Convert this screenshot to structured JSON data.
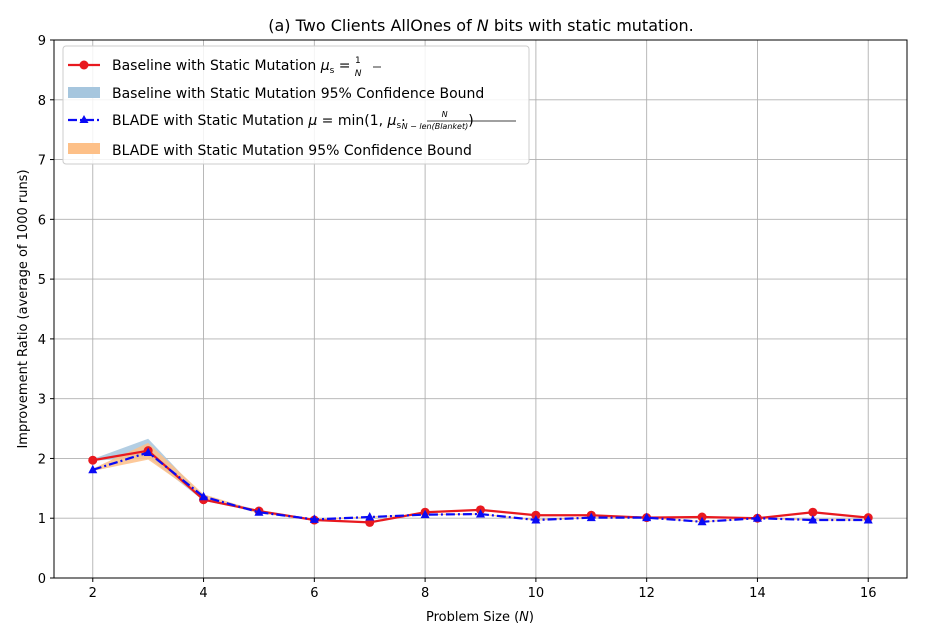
{
  "chart_data": {
    "type": "line",
    "title": "(a) Two Clients AllOnes of N bits with static mutation.",
    "xlabel": "Problem Size (N)",
    "ylabel": "Improvement Ratio (average of 1000 runs)",
    "xlim": [
      1.3,
      16.7
    ],
    "ylim": [
      0,
      9
    ],
    "xticks": [
      2,
      4,
      6,
      8,
      10,
      12,
      14,
      16
    ],
    "yticks": [
      0,
      1,
      2,
      3,
      4,
      5,
      6,
      7,
      8,
      9
    ],
    "grid": true,
    "legend_position": "upper-left",
    "x": [
      2,
      3,
      4,
      5,
      6,
      7,
      8,
      9,
      10,
      11,
      12,
      13,
      14,
      15,
      16
    ],
    "series": [
      {
        "name": "Baseline with Static Mutation μs = 1/N",
        "color": "#e8191f",
        "line_style": "solid",
        "marker": "circle",
        "values": [
          1.97,
          2.13,
          1.31,
          1.12,
          0.97,
          0.93,
          1.1,
          1.14,
          1.05,
          1.05,
          1.01,
          1.02,
          1.0,
          1.1,
          1.01
        ]
      },
      {
        "name": "BLADE with Static Mutation μ = min(1, μs·N/(N − len(Blanket)))",
        "color": "#0a0af5",
        "line_style": "dashdot",
        "marker": "triangle",
        "values": [
          1.81,
          2.1,
          1.36,
          1.1,
          0.98,
          1.02,
          1.06,
          1.07,
          0.97,
          1.01,
          1.01,
          0.94,
          1.0,
          0.97,
          0.97
        ]
      }
    ],
    "bands": [
      {
        "name": "Baseline with Static Mutation 95% Confidence Bound",
        "color": "#a6c6de",
        "lower": [
          1.96,
          2.02,
          1.29,
          1.1,
          0.96,
          0.92,
          1.09,
          1.13,
          1.04,
          1.04,
          1.0,
          1.01,
          0.99,
          1.09,
          1.0
        ],
        "upper": [
          1.99,
          2.33,
          1.35,
          1.14,
          0.99,
          0.94,
          1.11,
          1.15,
          1.06,
          1.06,
          1.02,
          1.03,
          1.01,
          1.11,
          1.02
        ]
      },
      {
        "name": "BLADE with Static Mutation 95% Confidence Bound",
        "color": "#fdc088",
        "lower": [
          1.79,
          1.98,
          1.33,
          1.08,
          0.97,
          1.01,
          1.05,
          1.06,
          0.96,
          1.0,
          1.0,
          0.93,
          0.99,
          0.96,
          0.96
        ],
        "upper": [
          1.83,
          2.26,
          1.4,
          1.12,
          0.99,
          1.03,
          1.07,
          1.08,
          0.98,
          1.02,
          1.02,
          0.95,
          1.01,
          0.98,
          0.98
        ]
      }
    ]
  },
  "legend": {
    "baseline_line": {
      "prefix": "Baseline with Static Mutation ",
      "math": "μs = 1/N"
    },
    "baseline_band": "Baseline with Static Mutation 95% Confidence Bound",
    "blade_line": {
      "prefix": "BLADE with Static Mutation ",
      "math": "μ = min(1, μs· N / (N − len(Blanket)) )"
    },
    "blade_band": "BLADE with Static Mutation 95% Confidence Bound"
  }
}
